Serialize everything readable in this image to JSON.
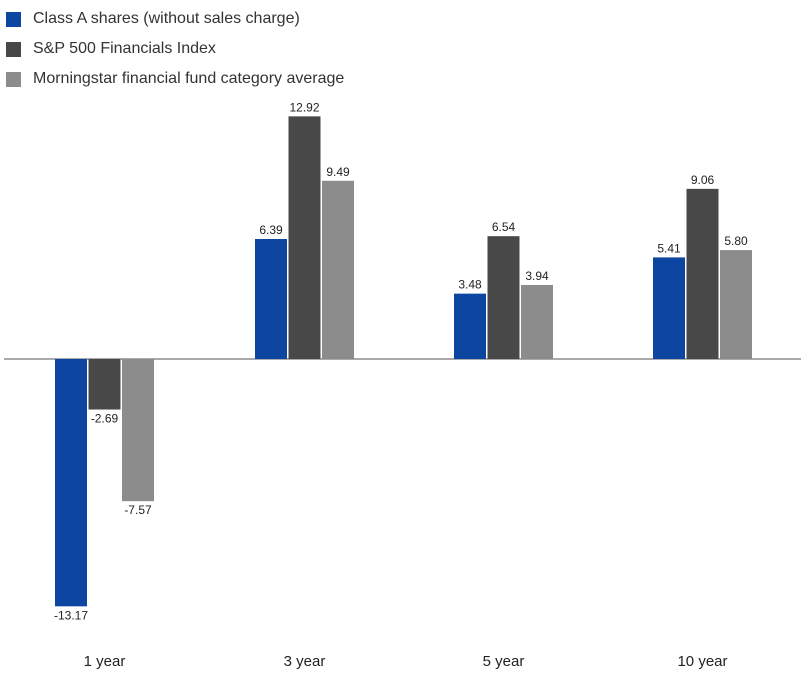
{
  "chart_data": {
    "type": "bar",
    "categories": [
      "1 year",
      "3 year",
      "5 year",
      "10 year"
    ],
    "series": [
      {
        "name": "Class A shares (without sales charge)",
        "color": "#0c46a0",
        "values": [
          -13.17,
          6.39,
          3.48,
          5.41
        ],
        "labels": [
          "-13.17",
          "6.39",
          "3.48",
          "5.41"
        ]
      },
      {
        "name": "S&P 500 Financials Index",
        "color": "#484848",
        "values": [
          -2.69,
          12.92,
          6.54,
          9.06
        ],
        "labels": [
          "-2.69",
          "12.92",
          "6.54",
          "9.06"
        ]
      },
      {
        "name": "Morningstar financial fund category average",
        "color": "#8c8c8c",
        "values": [
          -7.57,
          9.49,
          3.94,
          5.8
        ],
        "labels": [
          "-7.57",
          "9.49",
          "3.94",
          "5.80"
        ]
      }
    ],
    "title": "",
    "xlabel": "",
    "ylabel": "",
    "ylim": [
      -13.17,
      12.92
    ],
    "grid": false,
    "legend_position": "top-left",
    "zero_line": true
  }
}
